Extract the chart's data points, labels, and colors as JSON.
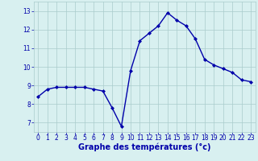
{
  "hours": [
    0,
    1,
    2,
    3,
    4,
    5,
    6,
    7,
    8,
    9,
    10,
    11,
    12,
    13,
    14,
    15,
    16,
    17,
    18,
    19,
    20,
    21,
    22,
    23
  ],
  "temps": [
    8.4,
    8.8,
    8.9,
    8.9,
    8.9,
    8.9,
    8.8,
    8.7,
    7.8,
    6.8,
    9.8,
    11.4,
    11.8,
    12.2,
    12.9,
    12.5,
    12.2,
    11.5,
    10.4,
    10.1,
    9.9,
    9.7,
    9.3,
    9.2
  ],
  "line_color": "#0000aa",
  "marker": "D",
  "marker_size": 2.0,
  "bg_color": "#d8f0f0",
  "grid_color": "#aacccc",
  "xlabel_color": "#0000aa",
  "title": "Graphe des températures (°c)",
  "ylim_min": 6.5,
  "ylim_max": 13.5,
  "yticks": [
    7,
    8,
    9,
    10,
    11,
    12,
    13
  ],
  "xticks": [
    0,
    1,
    2,
    3,
    4,
    5,
    6,
    7,
    8,
    9,
    10,
    11,
    12,
    13,
    14,
    15,
    16,
    17,
    18,
    19,
    20,
    21,
    22,
    23
  ],
  "tick_label_color": "#0000aa",
  "tick_label_fontsize": 5.5,
  "xlabel_fontsize": 7,
  "linewidth": 1.0
}
